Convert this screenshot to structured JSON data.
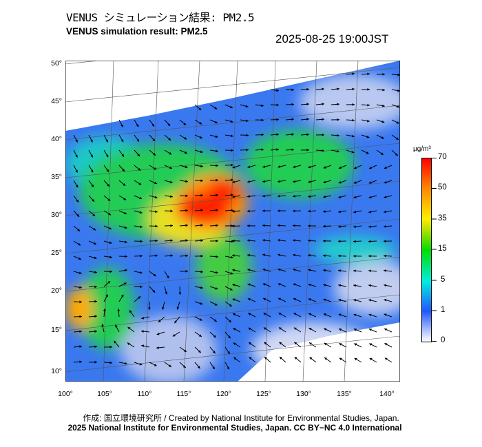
{
  "title": {
    "japanese": "VENUS シミュレーション結果: PM2.5",
    "english": "VENUS simulation result: PM2.5",
    "timestamp": "2025-08-25 19:00JST"
  },
  "map": {
    "latitude_labels": [
      "50°",
      "45°",
      "40°",
      "35°",
      "30°",
      "25°",
      "20°",
      "15°",
      "10°"
    ],
    "longitude_labels": [
      "100°",
      "105°",
      "110°",
      "115°",
      "120°",
      "125°",
      "130°",
      "135°",
      "140°"
    ]
  },
  "colorbar": {
    "unit": "µg/m³",
    "ticks": [
      "70",
      "50",
      "35",
      "15",
      "5",
      "1",
      "0"
    ],
    "colors": [
      "#ff0000",
      "#ff8800",
      "#ffee00",
      "#00dd00",
      "#00eedd",
      "#2255ff",
      "#ffffff"
    ]
  },
  "credits": {
    "line1": "作成: 国立環境研究所 / Created by National Institute for Environmental Studies, Japan.",
    "line2": "2025 National Institute for Environmental Studies, Japan. CC BY−NC 4.0 International"
  }
}
